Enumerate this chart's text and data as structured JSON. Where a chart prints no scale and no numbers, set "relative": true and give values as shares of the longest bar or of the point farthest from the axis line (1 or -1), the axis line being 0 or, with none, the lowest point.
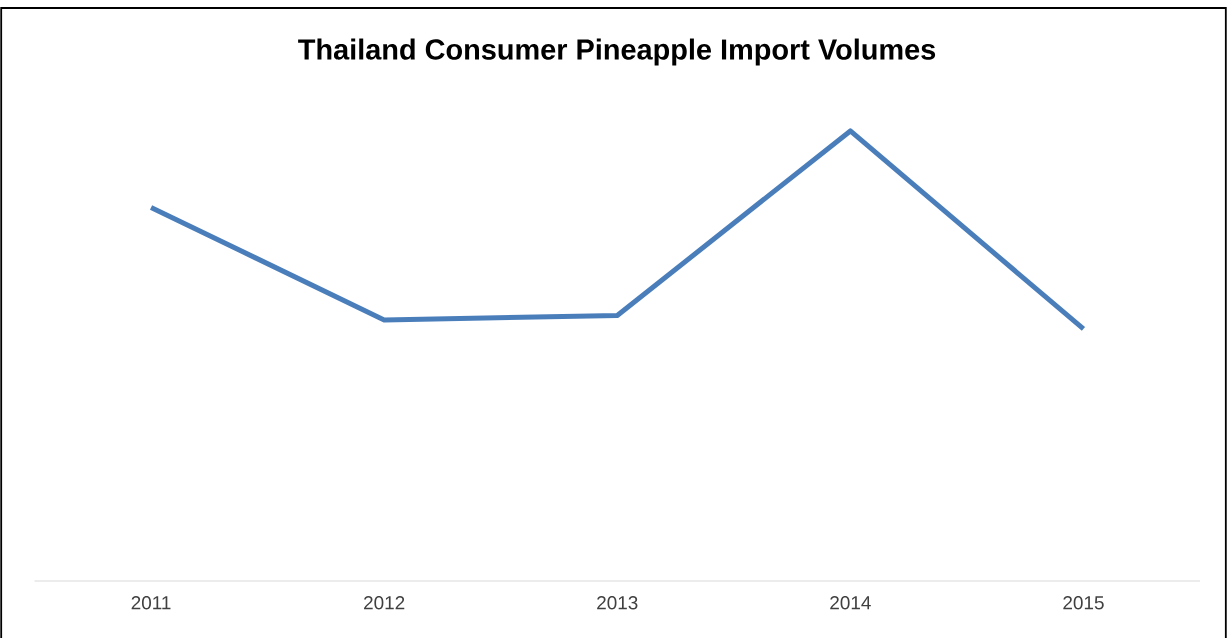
{
  "chart_data": {
    "type": "line",
    "title": "Thailand Consumer Pineapple Import Volumes",
    "categories": [
      "2011",
      "2012",
      "2013",
      "2014",
      "2015"
    ],
    "values": [
      0.83,
      0.58,
      0.59,
      1,
      0.56
    ],
    "color": "#4a7ebb",
    "relative": true,
    "marker": "none",
    "line_style": "solid",
    "legend": false,
    "grid": false
  }
}
